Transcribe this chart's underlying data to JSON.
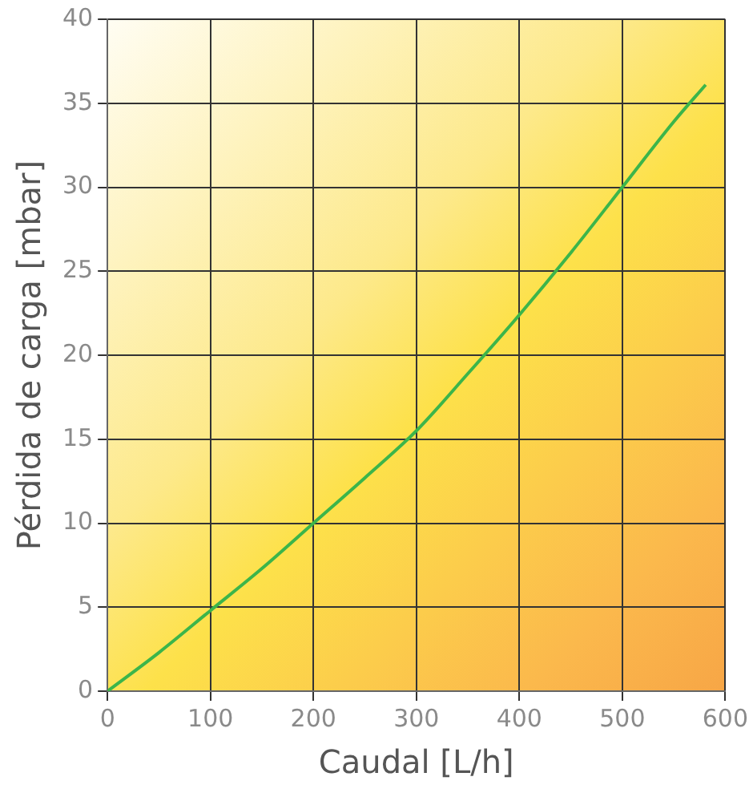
{
  "chart_data": {
    "type": "line",
    "xlabel": "Caudal [L/h]",
    "ylabel": "Pérdida de carga [mbar]",
    "x": [
      0,
      50,
      100,
      150,
      200,
      250,
      300,
      350,
      400,
      450,
      500,
      550,
      581
    ],
    "series": [
      {
        "color": "#3cb54a",
        "values": [
          0,
          2.3,
          4.8,
          7.3,
          10,
          12.7,
          15.5,
          18.9,
          22.4,
          26.1,
          30,
          33.9,
          36.1
        ]
      }
    ],
    "xlim": [
      0,
      600
    ],
    "xticks": [
      0,
      100,
      200,
      300,
      400,
      500,
      600
    ],
    "ylim": [
      0,
      40
    ],
    "yticks": [
      0,
      5,
      10,
      15,
      20,
      25,
      30,
      35,
      40
    ],
    "grid": true,
    "legend": false,
    "marker": "none",
    "line_style": "solid"
  }
}
